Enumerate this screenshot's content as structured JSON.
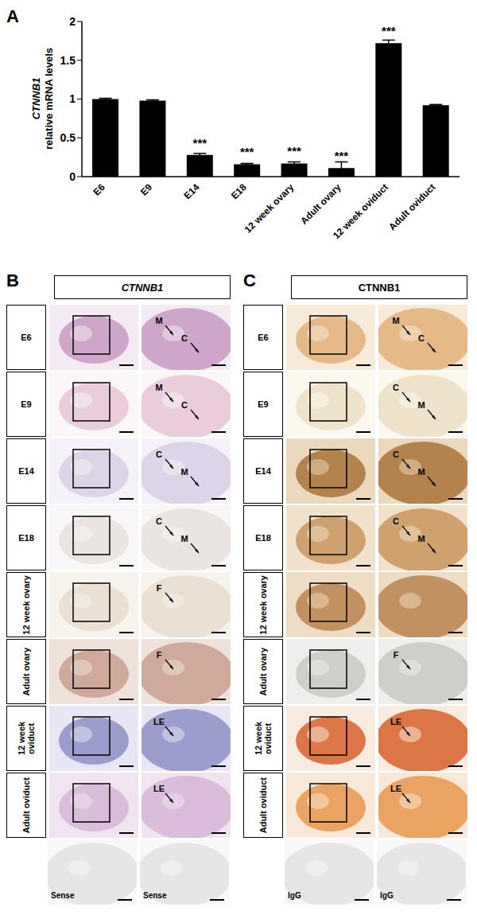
{
  "panel_label": "A",
  "chart_data": {
    "type": "bar",
    "y_label": [
      "CTNNB1",
      "relative mRNA levels"
    ],
    "categories": [
      "E6",
      "E9",
      "E14",
      "E18",
      "12 week ovary",
      "Adult ovary",
      "12 week oviduct",
      "Adult oviduct"
    ],
    "values": [
      1.0,
      0.98,
      0.28,
      0.16,
      0.17,
      0.11,
      1.72,
      0.92
    ],
    "errors": [
      0.01,
      0.01,
      0.02,
      0.01,
      0.02,
      0.08,
      0.04,
      0.01
    ],
    "significance": [
      null,
      null,
      "***",
      "***",
      "***",
      "***",
      "***",
      null
    ],
    "color": "#000000",
    "ylim": [
      0,
      2
    ],
    "yticks": [
      0,
      0.5,
      1,
      1.5,
      2
    ],
    "grid": false
  },
  "image_panels": [
    {
      "label": "B",
      "header": "CTNNB1",
      "rows": [
        {
          "label": "E6",
          "right_labels": [
            "M",
            "C"
          ]
        },
        {
          "label": "E9",
          "right_labels": [
            "M",
            "C"
          ]
        },
        {
          "label": "E14",
          "right_labels": [
            "C",
            "M"
          ]
        },
        {
          "label": "E18",
          "right_labels": [
            "C",
            "M"
          ]
        },
        {
          "label": "12 week ovary",
          "right_labels": [
            "F"
          ]
        },
        {
          "label": "Adult ovary",
          "right_labels": [
            "F"
          ]
        },
        {
          "label": "12 week oviduct",
          "right_labels": [
            "LE"
          ]
        },
        {
          "label": "Adult oviduct",
          "right_labels": [
            "LE"
          ]
        }
      ],
      "control": [
        "Sense",
        "Sense"
      ]
    },
    {
      "label": "C",
      "header": "CTNNB1",
      "rows": [
        {
          "label": "E6",
          "right_labels": [
            "M",
            "C"
          ]
        },
        {
          "label": "E9",
          "right_labels": [
            "C",
            "M"
          ]
        },
        {
          "label": "E14",
          "right_labels": [
            "C",
            "M"
          ]
        },
        {
          "label": "E18",
          "right_labels": [
            "C",
            "M"
          ]
        },
        {
          "label": "12 week ovary",
          "right_labels": []
        },
        {
          "label": "Adult ovary",
          "right_labels": [
            "F"
          ]
        },
        {
          "label": "12 week oviduct",
          "right_labels": [
            "LE"
          ]
        },
        {
          "label": "Adult oviduct",
          "right_labels": [
            "LE"
          ]
        }
      ],
      "control": [
        "IgG",
        "IgG"
      ]
    }
  ]
}
